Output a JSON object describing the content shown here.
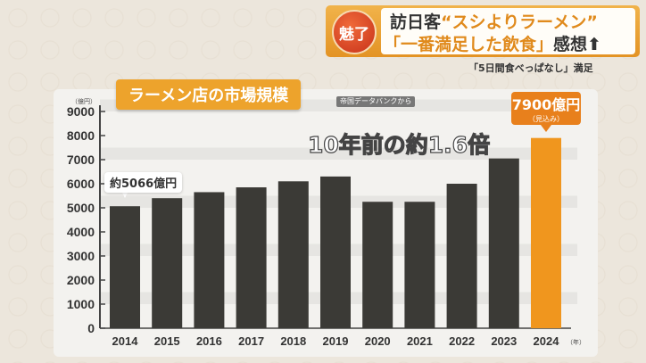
{
  "headline": {
    "badge": "魅了",
    "line1_prefix": "訪日客",
    "line1_quote": "“スシよりラーメン”",
    "line2_quote": "「一番満足した飲食」",
    "line2_suffix": "感想",
    "arrow_icon": "up-arrow-icon",
    "subtext": "「5日間食べっぱなし」満足"
  },
  "source": "帝国データバンクから",
  "callout": "10年前の約1.6倍",
  "colors": {
    "bar": "#3b3a36",
    "highlight": "#f0961e",
    "title_bg": "#eda32c"
  },
  "chart_data": {
    "type": "bar",
    "title": "ラーメン店の市場規模",
    "ylabel": "（億円）",
    "xlabel": "（年）",
    "categories": [
      "2014",
      "2015",
      "2016",
      "2017",
      "2018",
      "2019",
      "2020",
      "2021",
      "2022",
      "2023",
      "2024"
    ],
    "values": [
      5066,
      5400,
      5650,
      5850,
      6100,
      6300,
      5250,
      5250,
      6000,
      7050,
      7900
    ],
    "ylim": [
      0,
      9000
    ],
    "yticks": [
      "0",
      "1000",
      "2000",
      "3000",
      "4000",
      "5000",
      "6000",
      "7000",
      "8000",
      "9000"
    ],
    "grid": true,
    "annotations": {
      "first": "約5066億円",
      "last_value": "7900億円",
      "last_note": "（見込み）"
    }
  }
}
